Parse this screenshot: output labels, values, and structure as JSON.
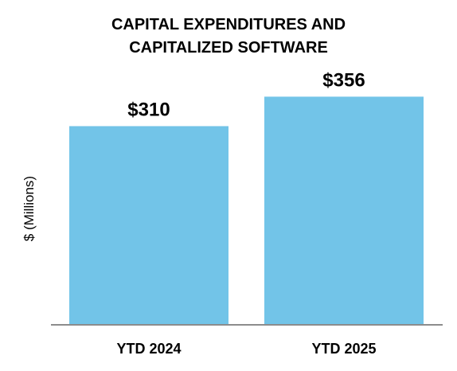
{
  "chart_data": {
    "type": "bar",
    "title_lines": [
      "CAPITAL EXPENDITURES AND",
      "CAPITALIZED SOFTWARE"
    ],
    "ylabel": "$ (Millions)",
    "xlabel": "",
    "categories": [
      "YTD 2024",
      "YTD 2025"
    ],
    "values": [
      310,
      356
    ],
    "value_labels": [
      "$310",
      "$356"
    ],
    "ylim": [
      0,
      400
    ],
    "grid": false,
    "legend": "none",
    "colors": {
      "bar": "#72c4e8",
      "axis": "#8c8c8c",
      "text": "#000000"
    }
  }
}
